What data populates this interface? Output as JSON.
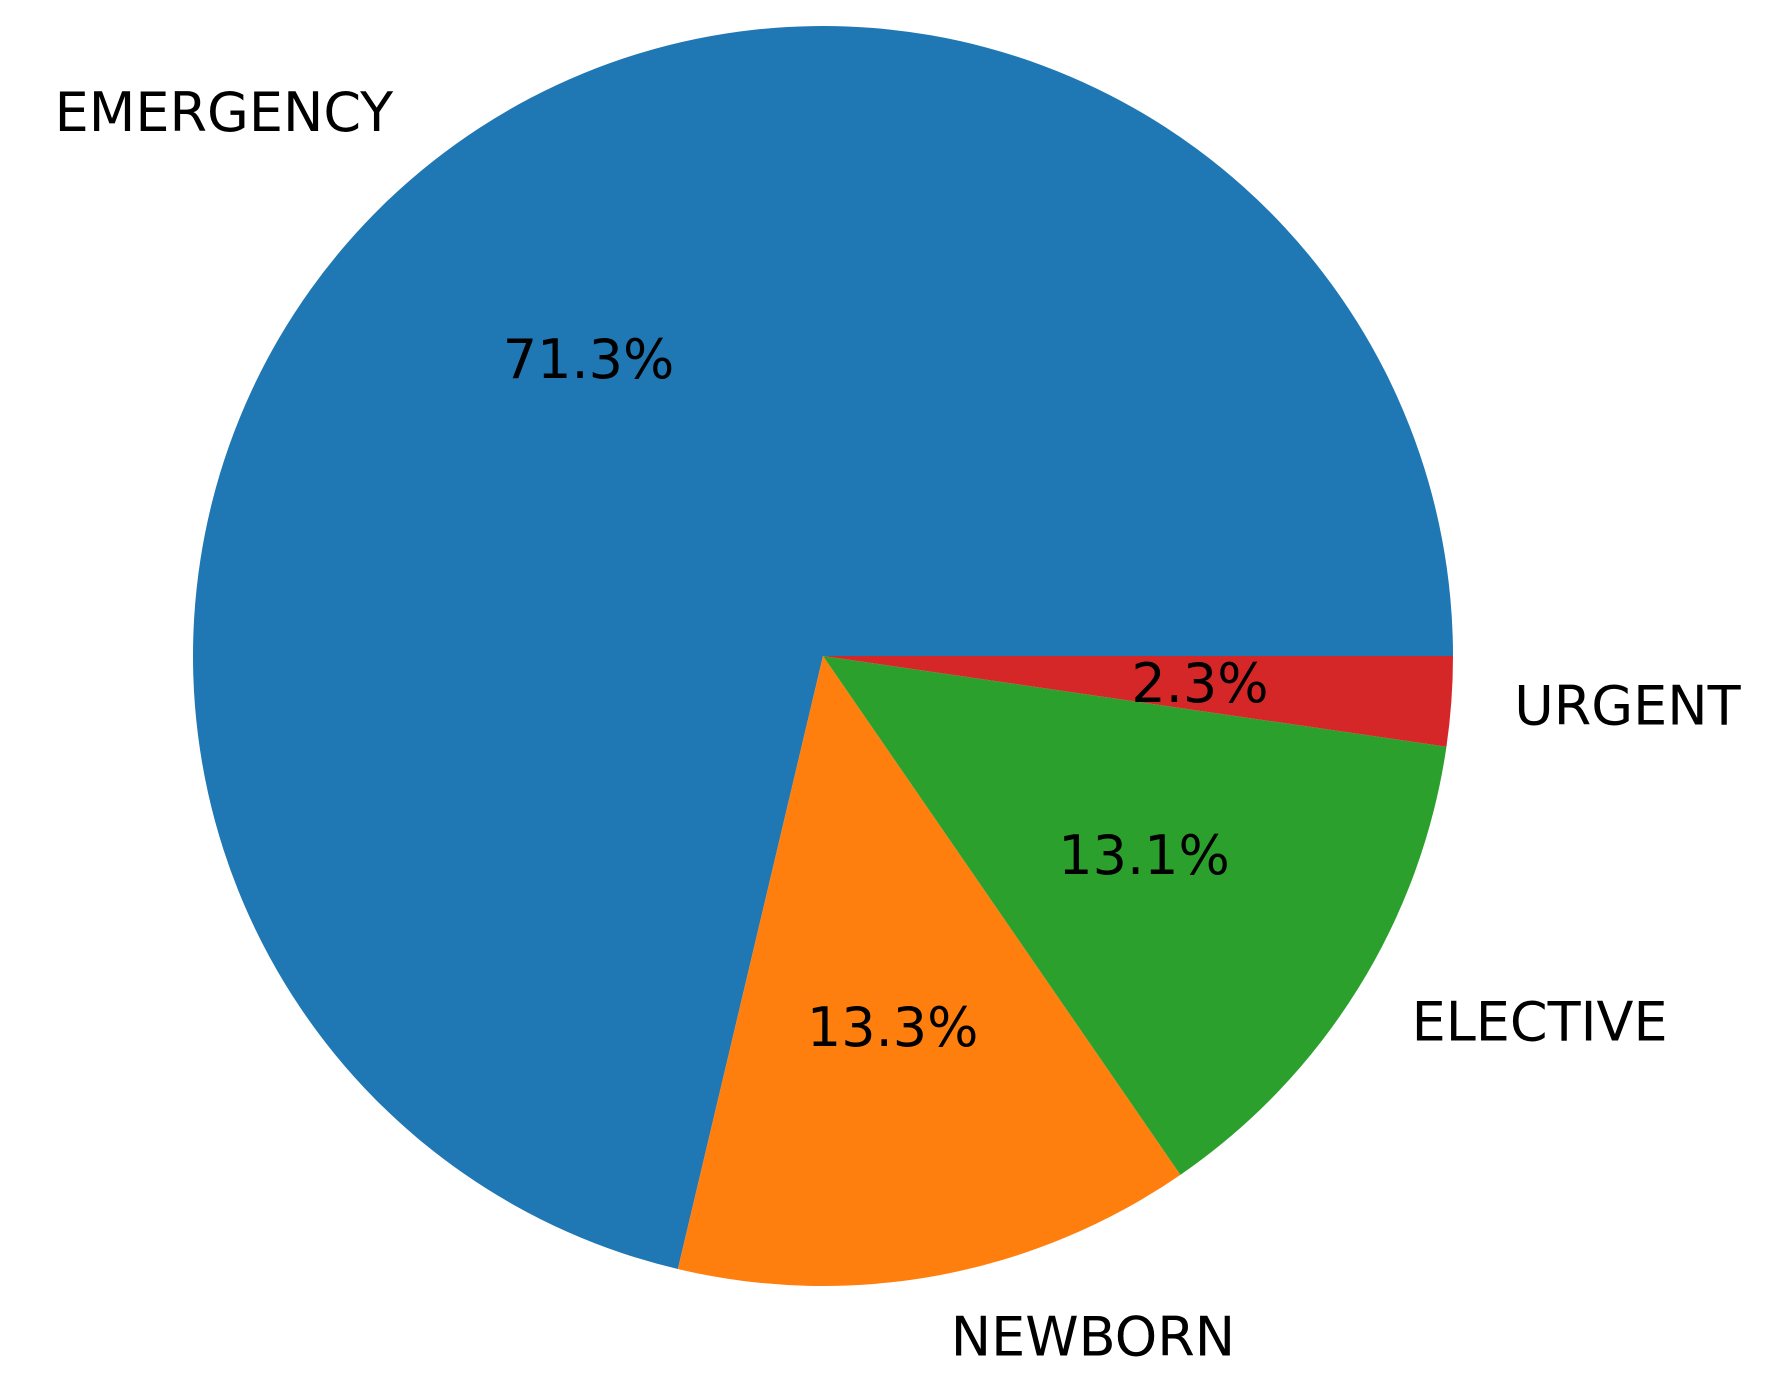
{
  "chart_data": {
    "type": "pie",
    "slices": [
      {
        "label": "EMERGENCY",
        "value": 71.3,
        "pct_label": "71.3%",
        "color": "#1f77b4"
      },
      {
        "label": "NEWBORN",
        "value": 13.3,
        "pct_label": "13.3%",
        "color": "#ff7f0e"
      },
      {
        "label": "ELECTIVE",
        "value": 13.1,
        "pct_label": "13.1%",
        "color": "#2ca02c"
      },
      {
        "label": "URGENT",
        "value": 2.3,
        "pct_label": "2.3%",
        "color": "#d62728"
      }
    ],
    "start_angle_deg": 0,
    "direction": "counterclockwise",
    "title": ""
  }
}
